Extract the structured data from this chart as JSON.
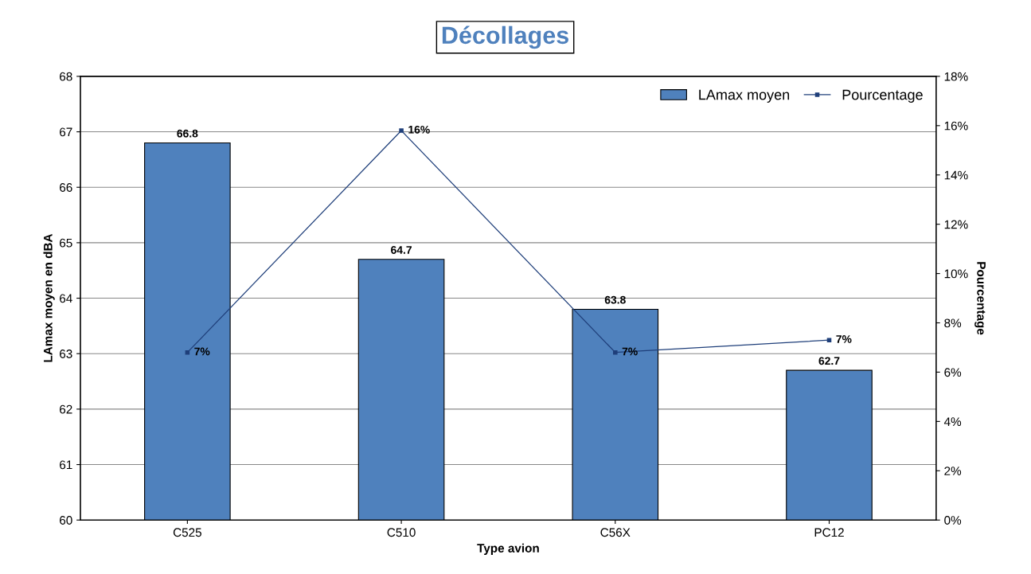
{
  "chart_data": {
    "type": "bar",
    "title": "Décollages",
    "xlabel": "Type avion",
    "ylabel": "LAmax moyen en dBA",
    "y2label": "Pourcentage",
    "categories": [
      "C525",
      "C510",
      "C56X",
      "PC12"
    ],
    "series": [
      {
        "name": "LAmax moyen",
        "color": "#4f81bd",
        "values": [
          66.8,
          64.7,
          63.8,
          62.7
        ]
      },
      {
        "name": "Pourcentage",
        "type": "line",
        "axis": "y2",
        "color": "#1f3f7a",
        "marker": "square",
        "values": [
          6.8,
          15.8,
          6.8,
          7.3
        ],
        "value_labels": [
          "7%",
          "16%",
          "7%",
          "7%"
        ]
      }
    ],
    "data_labels": true,
    "ylim": [
      60,
      68
    ],
    "yticks": [
      60,
      61,
      62,
      63,
      64,
      65,
      66,
      67,
      68
    ],
    "y2lim": [
      0,
      18
    ],
    "y2ticks": [
      {
        "value": 0,
        "label": "0%"
      },
      {
        "value": 2,
        "label": "2%"
      },
      {
        "value": 4,
        "label": "4%"
      },
      {
        "value": 6,
        "label": "6%"
      },
      {
        "value": 8,
        "label": "8%"
      },
      {
        "value": 10,
        "label": "10%"
      },
      {
        "value": 12,
        "label": "12%"
      },
      {
        "value": 14,
        "label": "14%"
      },
      {
        "value": 16,
        "label": "16%"
      },
      {
        "value": 18,
        "label": "18%"
      }
    ],
    "grid": "y",
    "legend": "top right"
  }
}
